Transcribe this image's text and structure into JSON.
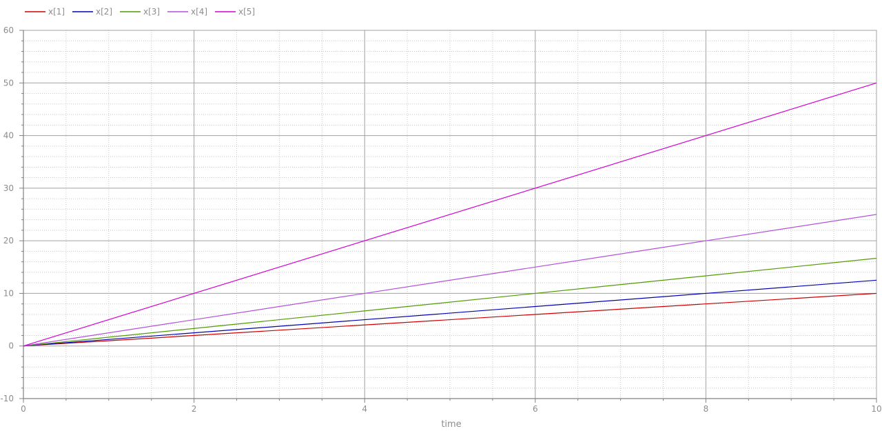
{
  "chart_data": {
    "type": "line",
    "title": "",
    "xlabel": "time",
    "ylabel": "",
    "xlim": [
      0,
      10
    ],
    "ylim": [
      -10,
      60
    ],
    "x_ticks": [
      0,
      2,
      4,
      6,
      8,
      10
    ],
    "x_tick_labels": [
      "0",
      "2",
      "4",
      "6",
      "8",
      "10"
    ],
    "y_ticks": [
      -10,
      0,
      10,
      20,
      30,
      40,
      50,
      60
    ],
    "y_tick_labels": [
      "-10",
      "0",
      "10",
      "20",
      "30",
      "40",
      "50",
      "60"
    ],
    "grid": true,
    "legend_position": "top-left",
    "series": [
      {
        "name": "x[1]",
        "color": "#cc0000",
        "x": [
          0,
          10
        ],
        "y": [
          0,
          10
        ]
      },
      {
        "name": "x[2]",
        "color": "#0000b4",
        "x": [
          0,
          10
        ],
        "y": [
          0,
          12.5
        ]
      },
      {
        "name": "x[3]",
        "color": "#4f9a00",
        "x": [
          0,
          10
        ],
        "y": [
          0,
          16.67
        ]
      },
      {
        "name": "x[4]",
        "color": "#b24fdc",
        "x": [
          0,
          10
        ],
        "y": [
          0,
          25
        ]
      },
      {
        "name": "x[5]",
        "color": "#d400d4",
        "x": [
          0,
          10
        ],
        "y": [
          0,
          50
        ]
      }
    ]
  }
}
